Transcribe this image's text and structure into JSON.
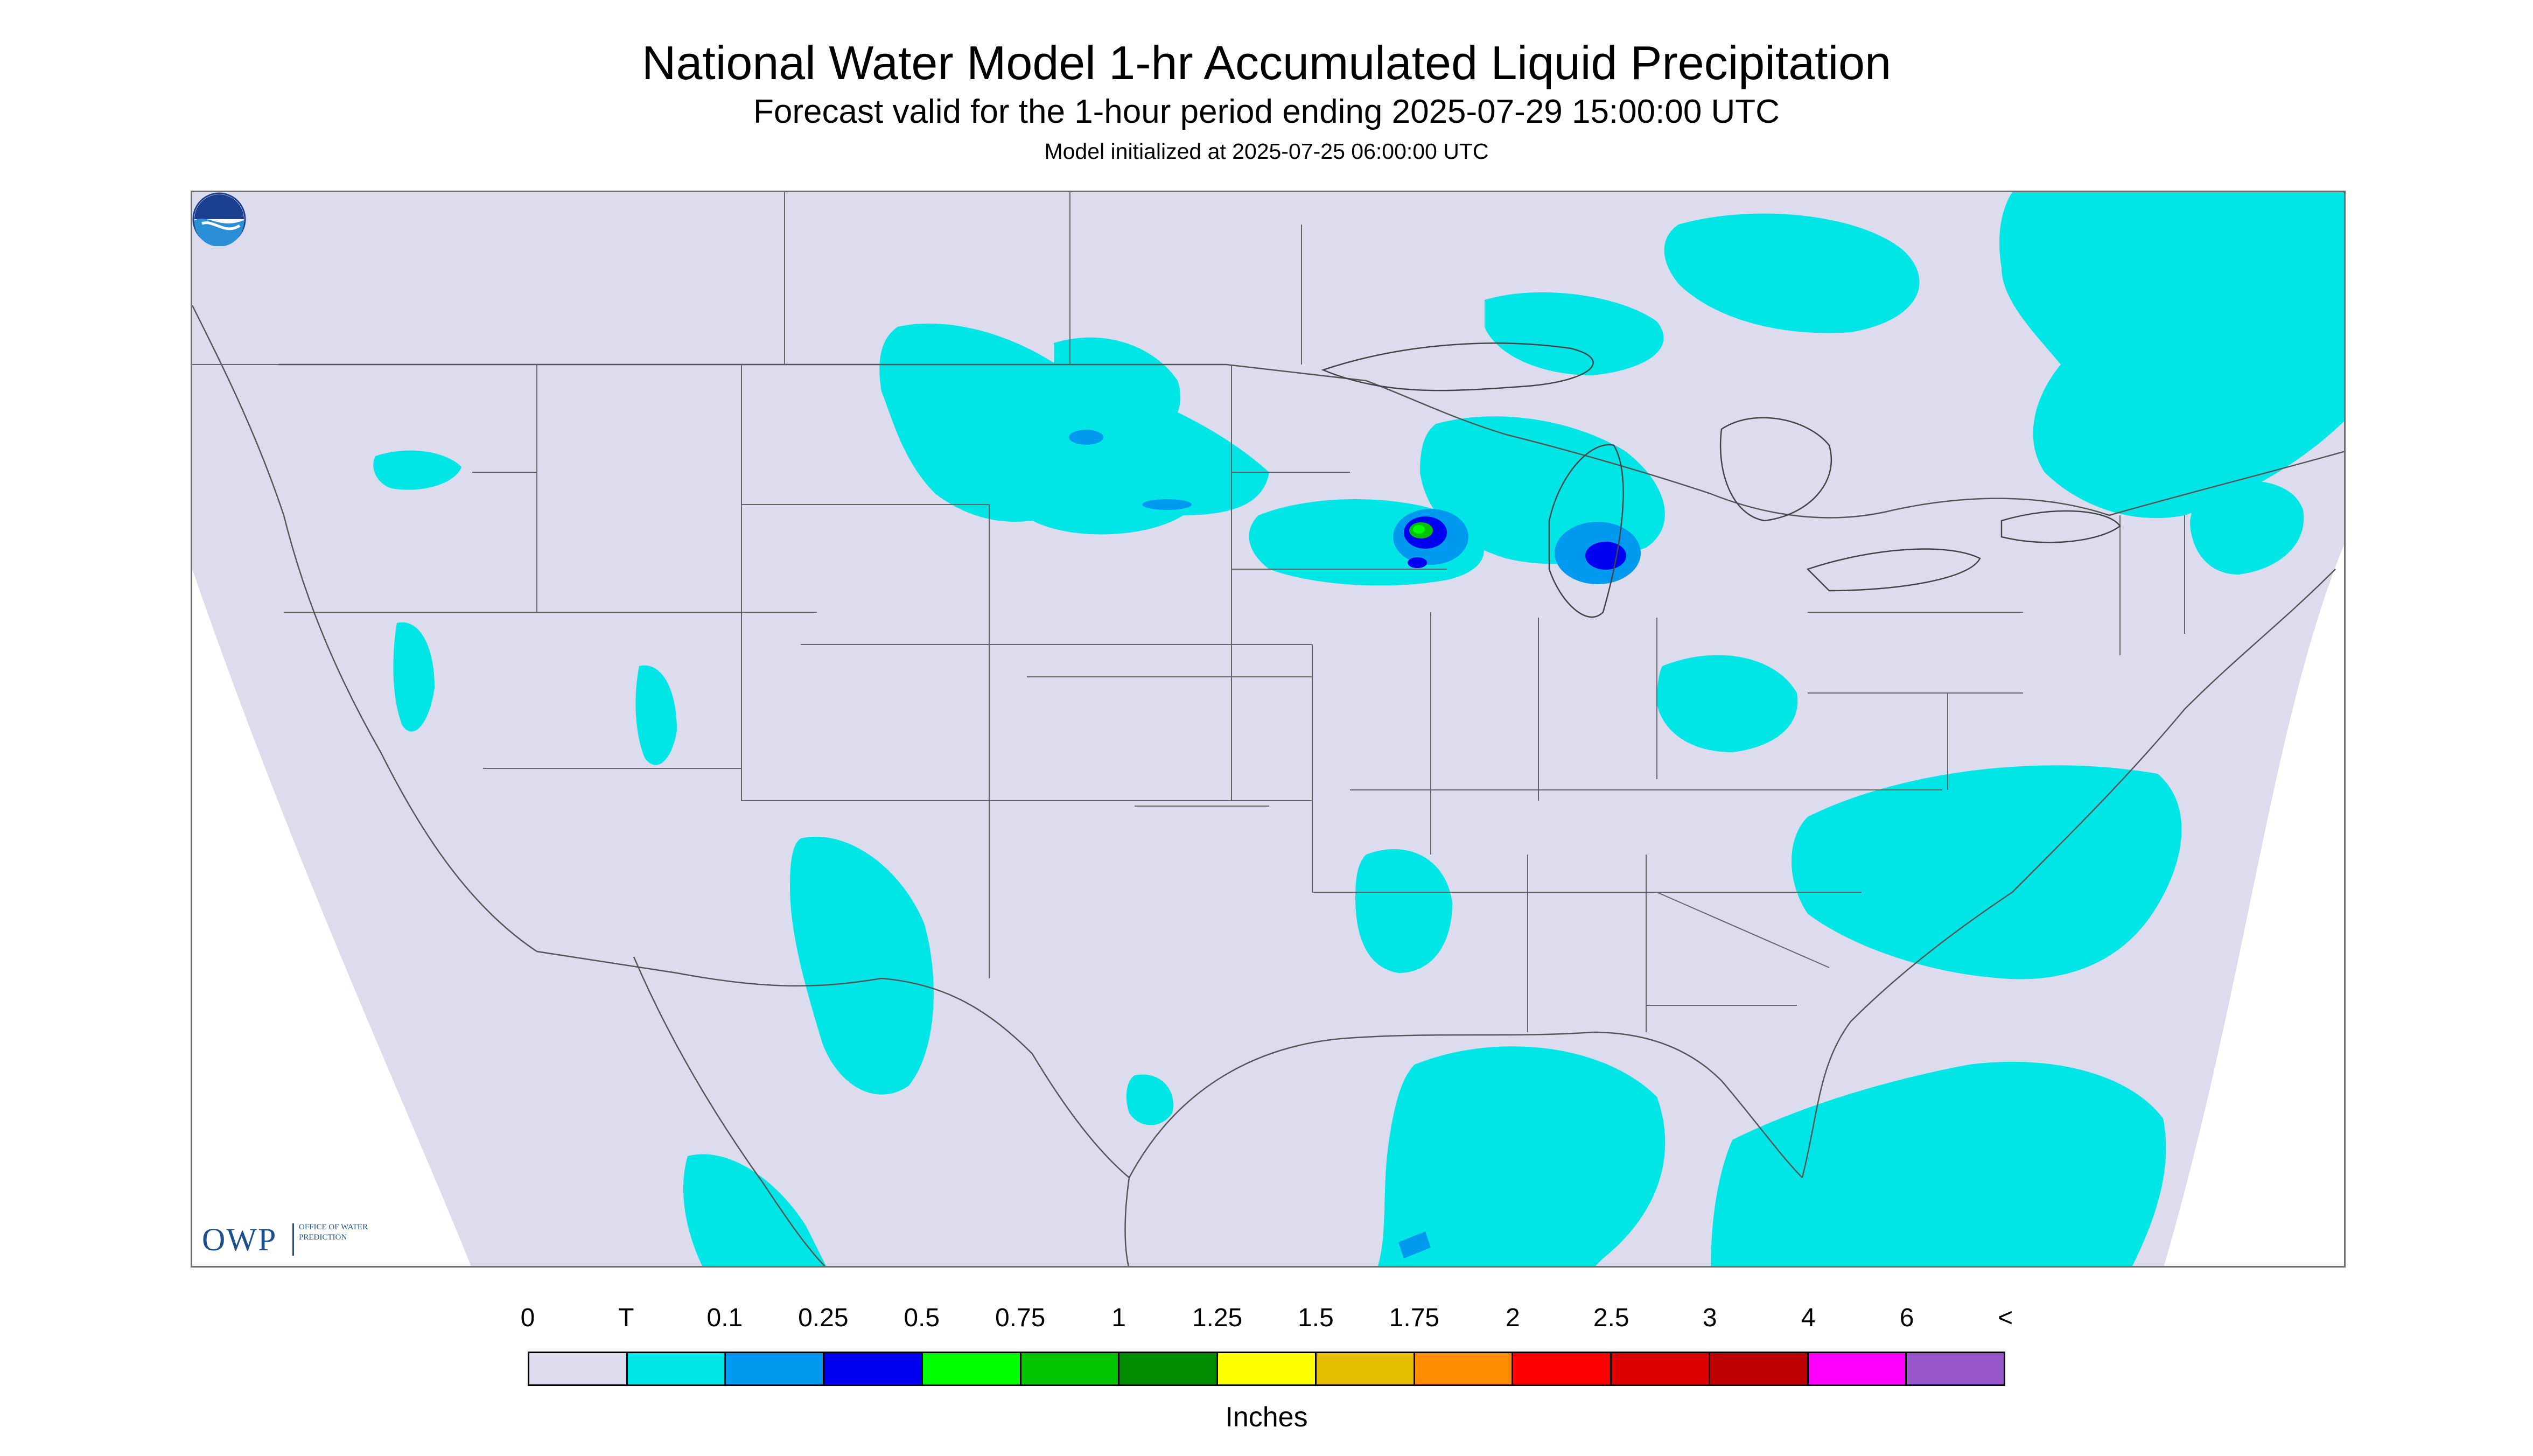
{
  "title": "National Water Model 1-hr Accumulated Liquid Precipitation",
  "subtitle": "Forecast valid for the 1-hour period ending 2025-07-29 15:00:00 UTC",
  "init_line": "Model initialized at 2025-07-25 06:00:00 UTC",
  "owp_logo": {
    "letters": "OWP",
    "subtext": "Office of Water Prediction"
  },
  "noaa_logo": {
    "icon": "noaa-logo-icon"
  },
  "legend": {
    "units": "Inches",
    "labels": [
      "0",
      "T",
      "0.1",
      "0.25",
      "0.5",
      "0.75",
      "1",
      "1.25",
      "1.5",
      "1.75",
      "2",
      "2.5",
      "3",
      "4",
      "6",
      "<"
    ],
    "colors": [
      "#dcdcee",
      "#00e6e6",
      "#0099f0",
      "#0000f0",
      "#00ff00",
      "#00c400",
      "#008c00",
      "#ffff00",
      "#e6be00",
      "#ff8c00",
      "#ff0000",
      "#dc0000",
      "#be0000",
      "#ff00ff",
      "#9955cc"
    ]
  },
  "colors": {
    "no_precip": "#dcdcee",
    "trace": "#00e6e6",
    "outside_domain": "#ffffff",
    "borders": "#555555"
  }
}
